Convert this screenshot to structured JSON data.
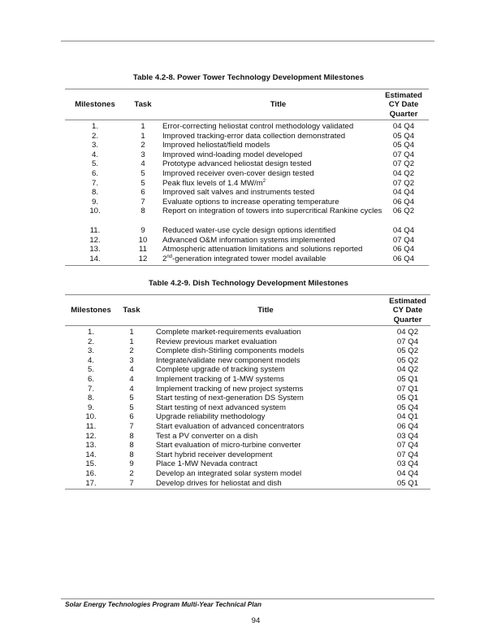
{
  "tables": [
    {
      "caption": "Table 4.2-8. Power Tower Technology Development Milestones",
      "headers": {
        "milestones": "Milestones",
        "task": "Task",
        "title": "Title",
        "date": [
          "Estimated",
          "CY Date",
          "Quarter"
        ]
      },
      "rows": [
        {
          "m": "1.",
          "task": "1",
          "title": [
            {
              "t": "Error-correcting heliostat control methodology validated"
            }
          ],
          "date": "04 Q4"
        },
        {
          "m": "2.",
          "task": "1",
          "title": [
            {
              "t": "Improved tracking-error data collection demonstrated"
            }
          ],
          "date": "05 Q4"
        },
        {
          "m": "3.",
          "task": "2",
          "title": [
            {
              "t": "Improved heliostat/field models"
            }
          ],
          "date": "05 Q4"
        },
        {
          "m": "4.",
          "task": "3",
          "title": [
            {
              "t": "Improved wind-loading model developed"
            }
          ],
          "date": "07 Q4"
        },
        {
          "m": "5.",
          "task": "4",
          "title": [
            {
              "t": "Prototype advanced heliostat design tested"
            }
          ],
          "date": "07 Q2"
        },
        {
          "m": "6.",
          "task": "5",
          "title": [
            {
              "t": "Improved receiver oven-cover design tested"
            }
          ],
          "date": "04 Q2"
        },
        {
          "m": "7.",
          "task": "5",
          "title": [
            {
              "t": "Peak flux levels of 1.4 MW/m"
            },
            {
              "sup": "2"
            }
          ],
          "date": "07 Q2"
        },
        {
          "m": "8.",
          "task": "6",
          "title": [
            {
              "t": "Improved salt valves and instruments tested"
            }
          ],
          "date": "04 Q4"
        },
        {
          "m": "9.",
          "task": "7",
          "title": [
            {
              "t": "Evaluate options to increase operating temperature"
            }
          ],
          "date": "06 Q4"
        },
        {
          "m": "10.",
          "task": "8",
          "title": [
            {
              "t": "Report on integration of towers into supercritical Rankine cycles"
            }
          ],
          "date": "06 Q2",
          "lines": 2
        },
        {
          "m": "11.",
          "task": "9",
          "title": [
            {
              "t": "Reduced water-use cycle design options identified"
            }
          ],
          "date": "04 Q4"
        },
        {
          "m": "12.",
          "task": "10",
          "title": [
            {
              "t": "Advanced O&M information systems implemented"
            }
          ],
          "date": "07 Q4"
        },
        {
          "m": "13.",
          "task": "11",
          "title": [
            {
              "t": "Atmospheric attenuation limitations and solutions reported"
            }
          ],
          "date": "06 Q4"
        },
        {
          "m": "14.",
          "task": "12",
          "title": [
            {
              "t": "2"
            },
            {
              "sup": "nd"
            },
            {
              "t": "-generation integrated tower model available"
            }
          ],
          "date": "06 Q4"
        }
      ]
    },
    {
      "caption": "Table 4.2-9. Dish Technology Development Milestones",
      "headers": {
        "milestones": "Milestones",
        "task": "Task",
        "title": "Title",
        "date": [
          "Estimated",
          "CY Date",
          "Quarter"
        ]
      },
      "rows": [
        {
          "m": "1.",
          "task": "1",
          "title": [
            {
              "t": "Complete market-requirements evaluation"
            }
          ],
          "date": "04 Q2"
        },
        {
          "m": "2.",
          "task": "1",
          "title": [
            {
              "t": "Review previous market evaluation"
            }
          ],
          "date": "07 Q4"
        },
        {
          "m": "3.",
          "task": "2",
          "title": [
            {
              "t": "Complete dish-Stirling components models"
            }
          ],
          "date": "05 Q2"
        },
        {
          "m": "4.",
          "task": "3",
          "title": [
            {
              "t": "Integrate/validate new component models"
            }
          ],
          "date": "05 Q2"
        },
        {
          "m": "5.",
          "task": "4",
          "title": [
            {
              "t": "Complete upgrade of tracking system"
            }
          ],
          "date": "04 Q2"
        },
        {
          "m": "6.",
          "task": "4",
          "title": [
            {
              "t": "Implement tracking of 1-MW systems"
            }
          ],
          "date": "05 Q1"
        },
        {
          "m": "7.",
          "task": "4",
          "title": [
            {
              "t": "Implement tracking of new project systems"
            }
          ],
          "date": "07 Q1"
        },
        {
          "m": "8.",
          "task": "5",
          "title": [
            {
              "t": "Start testing of next-generation DS System"
            }
          ],
          "date": "05 Q1"
        },
        {
          "m": "9.",
          "task": "5",
          "title": [
            {
              "t": "Start testing of next advanced system"
            }
          ],
          "date": "05 Q4"
        },
        {
          "m": "10.",
          "task": "6",
          "title": [
            {
              "t": "Upgrade reliability methodology"
            }
          ],
          "date": "04 Q1"
        },
        {
          "m": "11.",
          "task": "7",
          "title": [
            {
              "t": "Start evaluation of advanced concentrators"
            }
          ],
          "date": "06 Q4"
        },
        {
          "m": "12.",
          "task": "8",
          "title": [
            {
              "t": "Test a PV converter on a dish"
            }
          ],
          "date": "03 Q4"
        },
        {
          "m": "13.",
          "task": "8",
          "title": [
            {
              "t": "Start evaluation of micro-turbine converter"
            }
          ],
          "date": "07 Q4"
        },
        {
          "m": "14.",
          "task": "8",
          "title": [
            {
              "t": "Start hybrid receiver development"
            }
          ],
          "date": "07 Q4"
        },
        {
          "m": "15.",
          "task": "9",
          "title": [
            {
              "t": "Place 1-MW Nevada contract"
            }
          ],
          "date": "03 Q4"
        },
        {
          "m": "16.",
          "task": "2",
          "title": [
            {
              "t": "Develop an integrated solar system model"
            }
          ],
          "date": "04 Q4"
        },
        {
          "m": "17.",
          "task": "7",
          "title": [
            {
              "t": "Develop drives for heliostat and dish"
            }
          ],
          "date": "05 Q1"
        }
      ]
    }
  ],
  "footer": {
    "text": "Solar Energy Technologies Program Multi-Year Technical Plan",
    "page_number": "94"
  }
}
